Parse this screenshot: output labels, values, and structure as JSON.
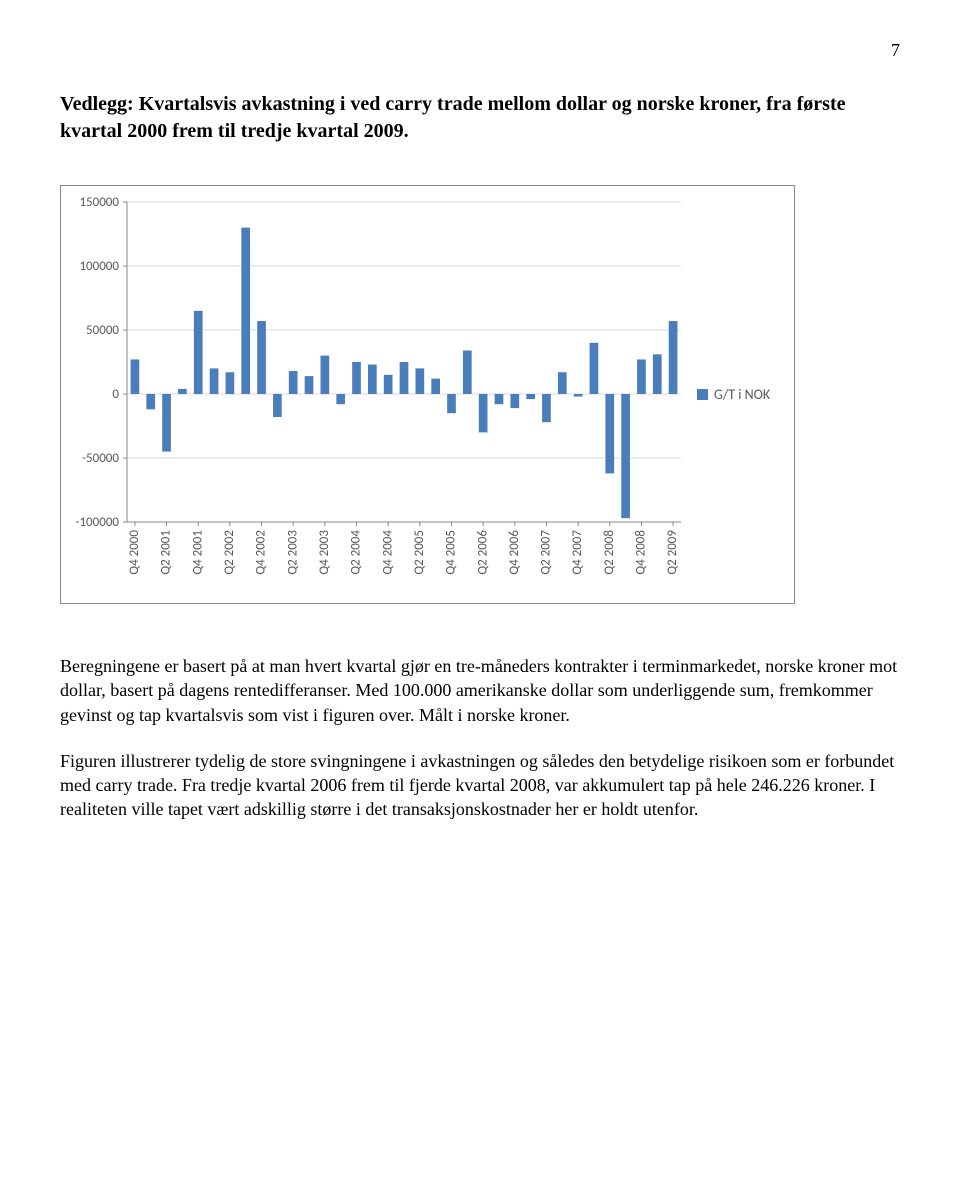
{
  "page": {
    "number": "7"
  },
  "heading": "Vedlegg: Kvartalsvis avkastning i ved carry trade mellom dollar og norske kroner, fra første kvartal 2000 frem til tredje kvartal 2009.",
  "chart": {
    "type": "bar",
    "series_label": "G/T i NOK",
    "series_color": "#4a7ebb",
    "background_color": "#ffffff",
    "border_color": "#8a8a8a",
    "gridline_color": "#d9d9d9",
    "axis_color": "#878787",
    "tick_color": "#878787",
    "label_color": "#595959",
    "label_fontsize": 13,
    "ylim": [
      -100000,
      150000
    ],
    "ytick_step": 50000,
    "yticks": [
      "150000",
      "100000",
      "50000",
      "0",
      "-50000",
      "-100000"
    ],
    "bar_width": 0.55,
    "categories": [
      "Q4 2000",
      "Q2 2001",
      "Q4 2001",
      "Q2 2002",
      "Q4 2002",
      "Q2 2003",
      "Q4 2003",
      "Q2 2004",
      "Q4 2004",
      "Q2 2005",
      "Q4 2005",
      "Q2 2006",
      "Q4 2006",
      "Q2 2007",
      "Q4 2007",
      "Q2 2008",
      "Q4 2008",
      "Q2 2009"
    ],
    "values": [
      27000,
      -12000,
      -45000,
      4000,
      65000,
      20000,
      17000,
      130000,
      57000,
      -18000,
      18000,
      14000,
      30000,
      -8000,
      25000,
      23000,
      15000,
      25000,
      20000,
      12000,
      -15000,
      34000,
      -30000,
      -8000,
      -11000,
      -4000,
      -22000,
      17000,
      -2000,
      40000,
      -62000,
      -97000,
      27000,
      31000,
      57000
    ]
  },
  "paragraphs": {
    "p1": "Beregningene er basert på at man hvert kvartal gjør en tre-måneders kontrakter i terminmarkedet, norske kroner mot dollar, basert på dagens rentedifferanser. Med 100.000 amerikanske dollar som underliggende sum, fremkommer gevinst og tap kvartalsvis som vist i figuren over. Målt i norske kroner.",
    "p2": "Figuren illustrerer tydelig de store svingningene i avkastningen og således den betydelige risikoen som er forbundet med carry trade. Fra tredje kvartal 2006 frem til fjerde kvartal 2008, var akkumulert tap på hele 246.226 kroner. I realiteten ville tapet vært adskillig større i det transaksjonskostnader her er holdt utenfor."
  }
}
